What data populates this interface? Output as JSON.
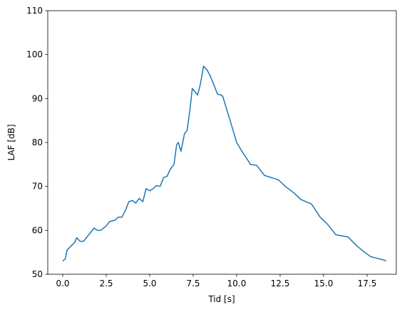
{
  "chart_data": {
    "type": "line",
    "xlabel": "Tid [s]",
    "ylabel": "LAF [dB]",
    "color": "#1f77b4",
    "x": [
      0,
      0.15,
      0.25,
      0.5,
      0.7,
      0.8,
      1.0,
      1.2,
      1.4,
      1.6,
      1.8,
      2.0,
      2.2,
      2.5,
      2.7,
      3.0,
      3.2,
      3.4,
      3.6,
      3.8,
      4.0,
      4.2,
      4.4,
      4.6,
      4.8,
      5.0,
      5.2,
      5.4,
      5.6,
      5.8,
      6.0,
      6.2,
      6.4,
      6.55,
      6.65,
      6.8,
      7.0,
      7.15,
      7.3,
      7.45,
      7.55,
      7.75,
      7.9,
      8.1,
      8.3,
      8.5,
      8.7,
      8.9,
      9.1,
      9.2,
      9.7,
      10.0,
      10.3,
      10.8,
      11.15,
      11.6,
      12.4,
      12.8,
      13.3,
      13.7,
      14.3,
      14.8,
      15.2,
      15.7,
      16.4,
      16.9,
      17.2,
      17.7,
      18.5,
      18.6
    ],
    "values": [
      53,
      53.5,
      55.5,
      56.5,
      57.3,
      58.3,
      57.5,
      57.5,
      58.5,
      59.5,
      60.5,
      60,
      60,
      61,
      62,
      62.3,
      63,
      63,
      64.5,
      66.5,
      66.8,
      66.2,
      67.3,
      66.5,
      69.5,
      69,
      69.5,
      70.2,
      70,
      72,
      72.3,
      74,
      75,
      79.5,
      80,
      78,
      82,
      82.7,
      87,
      92.3,
      91.8,
      90.8,
      93,
      97.4,
      96.5,
      95,
      93,
      91,
      90.8,
      90.5,
      84,
      80,
      78,
      75,
      74.8,
      72.5,
      71.5,
      70,
      68.5,
      67,
      66,
      63,
      61.5,
      59,
      58.5,
      56.5,
      55.5,
      54,
      53.2,
      53
    ],
    "xlim": [
      -0.86,
      19.18
    ],
    "ylim": [
      50,
      110
    ],
    "xticks": [
      {
        "value": 0,
        "label": "0.0"
      },
      2.5,
      {
        "value": 5,
        "label": "5.0"
      },
      7.5,
      {
        "value": 10,
        "label": "10.0"
      },
      12.5,
      {
        "value": 15,
        "label": "15.0"
      },
      17.5
    ],
    "yticks": [
      50,
      60,
      70,
      80,
      90,
      100,
      110
    ]
  }
}
